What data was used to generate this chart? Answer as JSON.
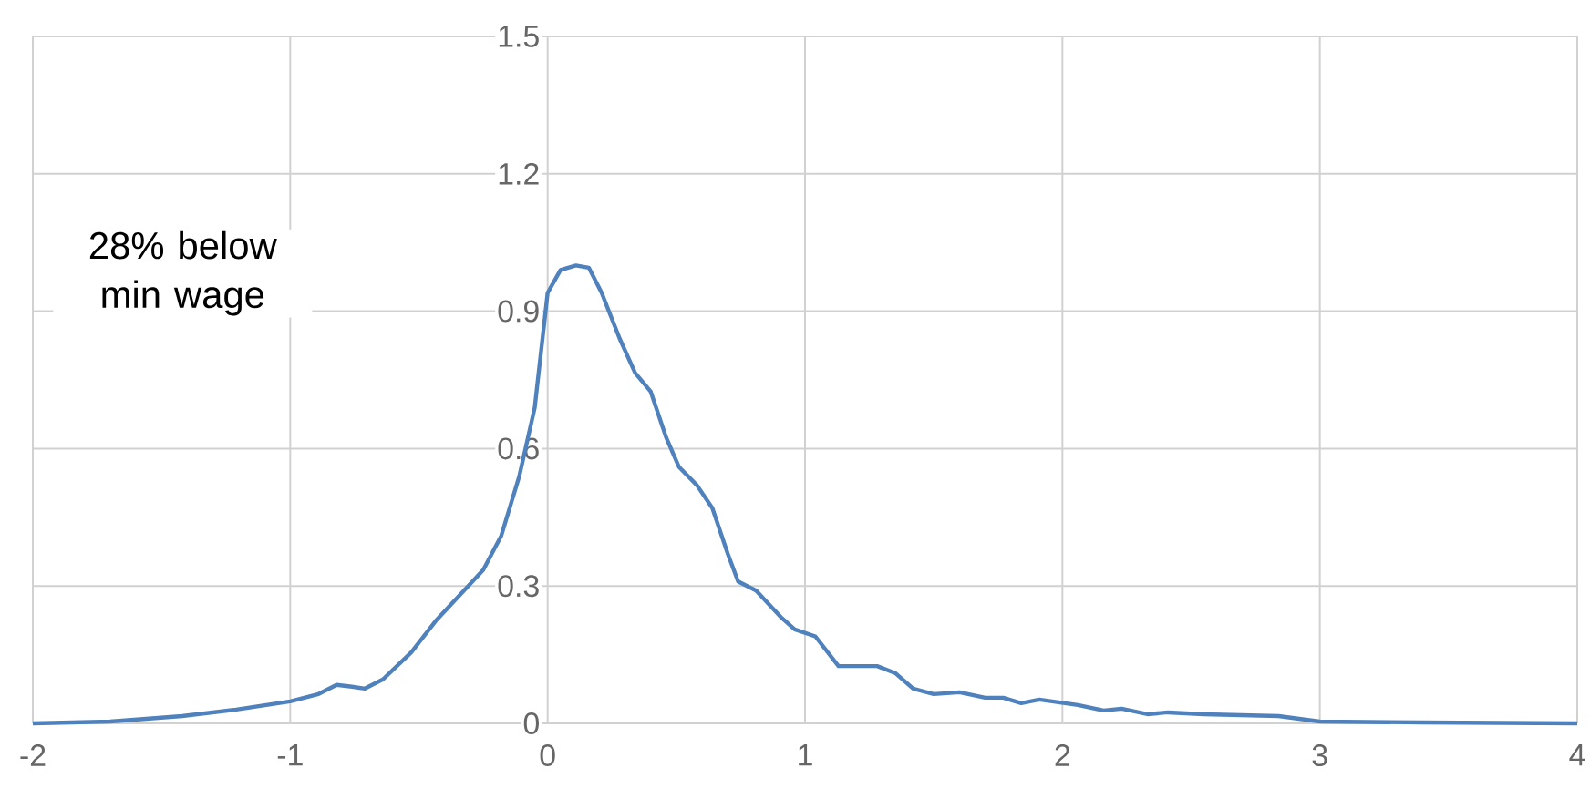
{
  "chart_data": {
    "type": "line",
    "x": [
      -2,
      -1.7,
      -1.42,
      -1.21,
      -1.0,
      -0.89,
      -0.82,
      -0.76,
      -0.71,
      -0.64,
      -0.53,
      -0.43,
      -0.33,
      -0.25,
      -0.18,
      -0.11,
      -0.05,
      0,
      0.05,
      0.11,
      0.16,
      0.21,
      0.28,
      0.34,
      0.4,
      0.46,
      0.51,
      0.58,
      0.64,
      0.7,
      0.74,
      0.81,
      0.91,
      0.96,
      1.04,
      1.13,
      1.28,
      1.35,
      1.42,
      1.5,
      1.6,
      1.7,
      1.77,
      1.84,
      1.91,
      2.06,
      2.16,
      2.23,
      2.33,
      2.41,
      2.55,
      2.84,
      3.0,
      3.4,
      4.0
    ],
    "series": [
      {
        "color": "#4f81bd",
        "values": [
          0,
          0.004,
          0.016,
          0.03,
          0.048,
          0.064,
          0.084,
          0.08,
          0.076,
          0.096,
          0.155,
          0.227,
          0.287,
          0.335,
          0.41,
          0.54,
          0.69,
          0.94,
          0.99,
          1.0,
          0.995,
          0.94,
          0.84,
          0.765,
          0.725,
          0.625,
          0.56,
          0.52,
          0.47,
          0.37,
          0.31,
          0.29,
          0.23,
          0.205,
          0.19,
          0.125,
          0.125,
          0.11,
          0.076,
          0.064,
          0.068,
          0.056,
          0.056,
          0.044,
          0.052,
          0.04,
          0.028,
          0.032,
          0.02,
          0.024,
          0.02,
          0.016,
          0.004,
          0.002,
          0
        ]
      }
    ],
    "xlim": [
      -2,
      4
    ],
    "ylim": [
      0,
      1.5
    ],
    "xticks": [
      -2,
      -1,
      0,
      1,
      2,
      3,
      4
    ],
    "yticks": [
      0,
      0.3,
      0.6,
      0.9,
      1.2,
      1.5
    ],
    "grid": true,
    "marker": "none",
    "line_style": "solid",
    "annotations": [
      "28% below min wage"
    ]
  }
}
